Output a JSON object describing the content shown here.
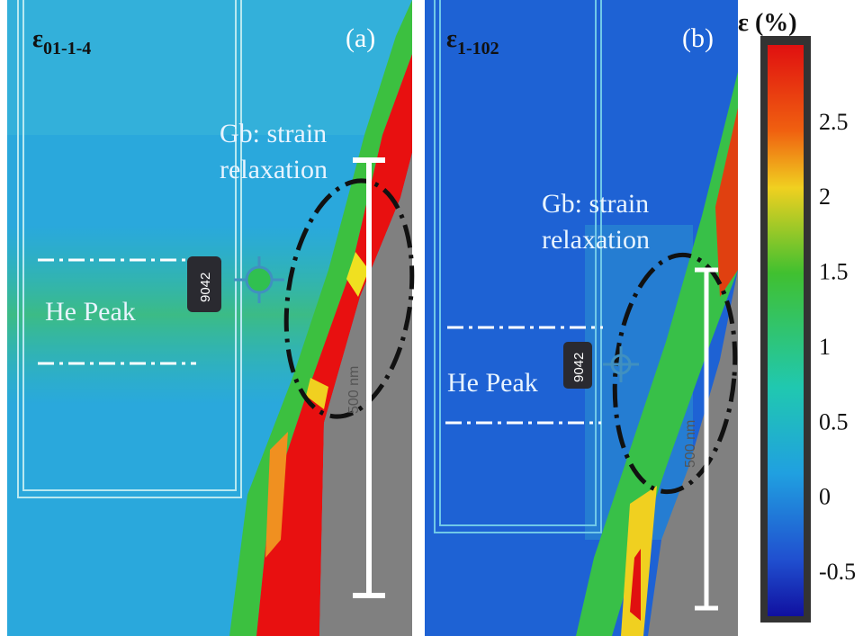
{
  "panels": [
    {
      "label": "ε",
      "label_sub": "01-1-4",
      "tag": "(a)",
      "annotation": [
        "Gb: strain",
        "relaxation"
      ],
      "region": "He Peak",
      "badge": "9042",
      "scale_bar": "500 nm"
    },
    {
      "label": "ε",
      "label_sub": "1-102",
      "tag": "(b)",
      "annotation": [
        "Gb: strain",
        "relaxation"
      ],
      "region": "He Peak",
      "badge": "9042",
      "scale_bar": "500 nm"
    }
  ],
  "colorbar": {
    "title": "ε (%)",
    "ticks": [
      2.5,
      2,
      1.5,
      1,
      0.5,
      0,
      -0.5
    ]
  }
}
